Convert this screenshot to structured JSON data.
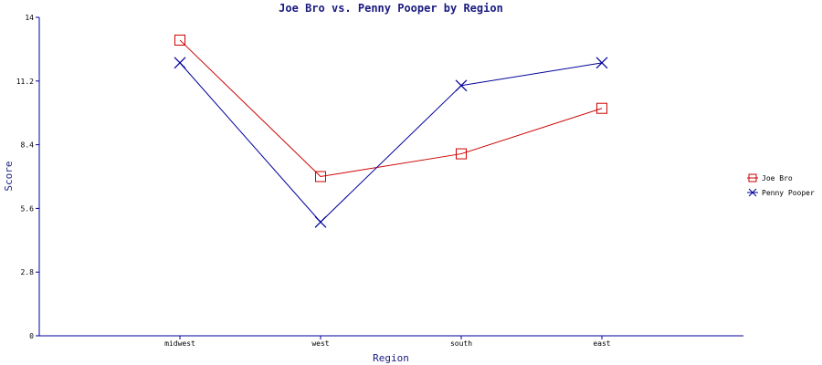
{
  "chart_data": {
    "type": "line",
    "title": "Joe Bro vs. Penny Pooper by Region",
    "xlabel": "Region",
    "ylabel": "Score",
    "categories": [
      "midwest",
      "west",
      "south",
      "east"
    ],
    "ylim": [
      0,
      14
    ],
    "yticks": [
      "0",
      "2.8",
      "5.6",
      "8.4",
      "11.2",
      "14"
    ],
    "grid": false,
    "legend_position": "right",
    "series": [
      {
        "name": "Joe Bro",
        "values": [
          13,
          7,
          8,
          10
        ],
        "color": "#cc0000",
        "marker": "square"
      },
      {
        "name": "Penny Pooper",
        "values": [
          12,
          5,
          11,
          12
        ],
        "color": "#000099",
        "marker": "x"
      }
    ]
  }
}
